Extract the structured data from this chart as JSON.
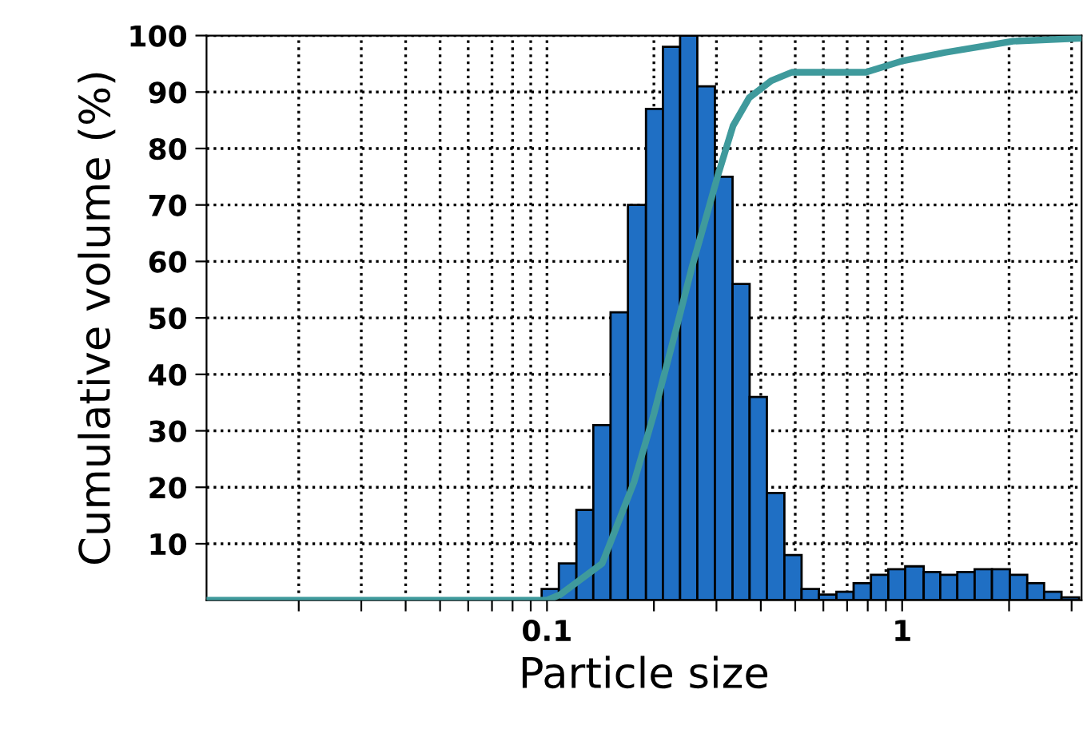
{
  "chart_data": {
    "type": "histogram",
    "xlabel": "Particle size",
    "ylabel": "Cumulative volume (%)",
    "log": "x",
    "grid": true,
    "xlim": [
      0.011,
      3.2
    ],
    "ylim": [
      0,
      100
    ],
    "xticks": [
      {
        "value": 0.02,
        "label": null
      },
      {
        "value": 0.03,
        "label": null
      },
      {
        "value": 0.04,
        "label": null
      },
      {
        "value": 0.05,
        "label": null
      },
      {
        "value": 0.06,
        "label": null
      },
      {
        "value": 0.07,
        "label": null
      },
      {
        "value": 0.08,
        "label": null
      },
      {
        "value": 0.09,
        "label": null
      },
      0.1,
      {
        "value": 0.2,
        "label": null
      },
      {
        "value": 0.3,
        "label": null
      },
      {
        "value": 0.4,
        "label": null
      },
      {
        "value": 0.5,
        "label": null
      },
      {
        "value": 0.6,
        "label": null
      },
      {
        "value": 0.7,
        "label": null
      },
      {
        "value": 0.8,
        "label": null
      },
      {
        "value": 0.9,
        "label": null
      },
      1,
      {
        "value": 2,
        "label": null
      },
      {
        "value": 3,
        "label": null
      }
    ],
    "yticks": [
      10,
      20,
      30,
      40,
      50,
      60,
      70,
      80,
      90,
      100
    ],
    "series": [
      {
        "color": "#1f6fc4",
        "bins": [
          0.0966,
          0.108,
          0.121,
          0.135,
          0.151,
          0.169,
          0.19,
          0.212,
          0.237,
          0.265,
          0.297,
          0.333,
          0.372,
          0.416,
          0.466,
          0.521,
          0.583,
          0.653,
          0.73,
          0.817,
          0.914,
          1.02,
          1.15,
          1.28,
          1.43,
          1.6,
          1.79,
          2.01,
          2.25,
          2.51,
          2.81,
          3.15
        ],
        "values": [
          2,
          6.5,
          16,
          31,
          51,
          70,
          87,
          98,
          100,
          91,
          75,
          56,
          36,
          19,
          8,
          2,
          1,
          1.5,
          3,
          4.5,
          5.5,
          6,
          5,
          4.5,
          5,
          5.5,
          5.5,
          4.5,
          3,
          1.5,
          0.5
        ]
      },
      {
        "type": "line",
        "color": "#3f9a9c",
        "x": [
          0.011,
          0.1,
          0.109,
          0.143,
          0.176,
          0.2,
          0.231,
          0.256,
          0.284,
          0.302,
          0.334,
          0.371,
          0.428,
          0.489,
          0.558,
          0.79,
          1,
          1.32,
          2.05,
          3.15
        ],
        "values": [
          0,
          0,
          1,
          6.5,
          21,
          33,
          48,
          59,
          69,
          75,
          84,
          89,
          92,
          93.5,
          93.5,
          93.5,
          95.5,
          97,
          99,
          99.5
        ]
      }
    ]
  }
}
